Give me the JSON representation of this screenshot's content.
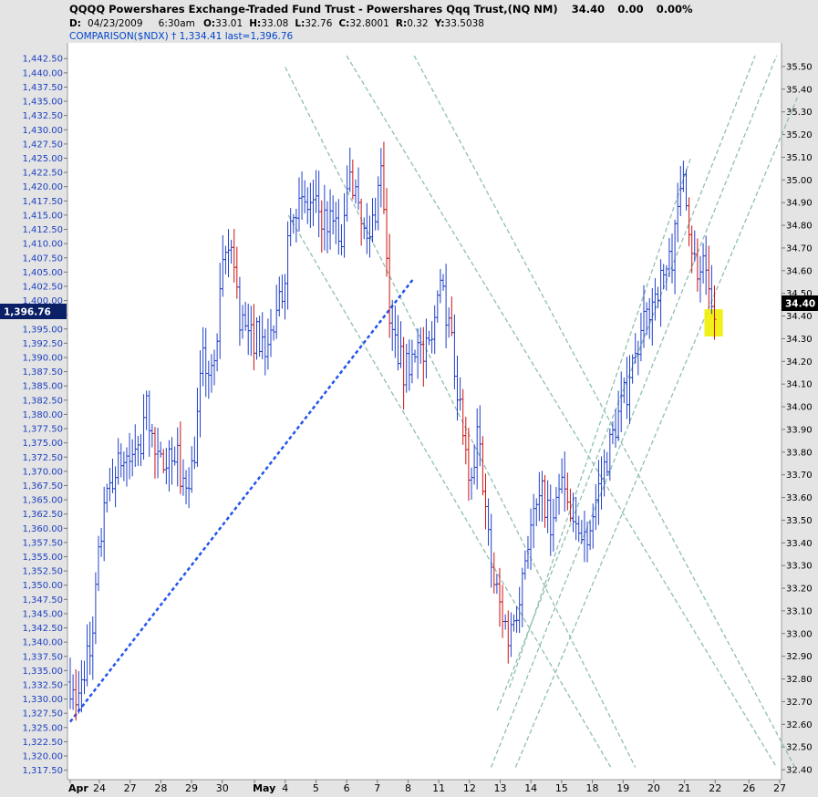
{
  "header": {
    "title": "QQQQ Powershares Exchange-Traded Fund Trust - Powershares Qqq Trust,(NQ NM)",
    "last": "34.40",
    "change": "0.00",
    "change_pct": "0.00%",
    "date_label": "D:",
    "date": "04/23/2009",
    "time": "6:30am",
    "open_label": "O:",
    "open": "33.01",
    "high_label": "H:",
    "high": "33.08",
    "low_label": "L:",
    "low": "32.76",
    "close_label": "C:",
    "close": "32.8001",
    "range_label": "R:",
    "range": "0.32",
    "y_label": "Y:",
    "y": "33.5038",
    "comparison": "COMPARISON($NDX) † 1,334.41 last=1,396.76"
  },
  "left_badge": "1,396.76",
  "right_badge": "34.40",
  "colors": {
    "background": "#ffffff",
    "axis_panel": "#e4e4e4",
    "up_bar": "#1f3fc8",
    "down_bar": "#cc1111",
    "trend_line": "#2255ee",
    "channel_line": "#8fbfb0",
    "left_badge_bg": "#0a1f66",
    "right_badge_bg": "#000000",
    "highlight": "#f0f000"
  },
  "chart_data": {
    "type": "ohlc",
    "x_tick_labels": [
      "Apr",
      "24",
      "27",
      "28",
      "29",
      "30",
      "May",
      "4",
      "5",
      "6",
      "7",
      "8",
      "11",
      "12",
      "13",
      "14",
      "15",
      "18",
      "19",
      "20",
      "21",
      "22",
      "26",
      "27"
    ],
    "left_axis": {
      "series": "$NDX (comparison)",
      "ylim": [
        1316.0,
        1443.5
      ],
      "ticks": [
        "1,442.50",
        "1,440.00",
        "1,437.50",
        "1,435.00",
        "1,432.50",
        "1,430.00",
        "1,427.50",
        "1,425.00",
        "1,422.50",
        "1,420.00",
        "1,417.50",
        "1,415.00",
        "1,412.50",
        "1,410.00",
        "1,407.50",
        "1,405.00",
        "1,402.50",
        "1,400.00",
        "1,397.50",
        "1,395.00",
        "1,392.50",
        "1,390.00",
        "1,387.50",
        "1,385.00",
        "1,382.50",
        "1,380.00",
        "1,377.50",
        "1,375.00",
        "1,372.50",
        "1,370.00",
        "1,367.50",
        "1,365.00",
        "1,362.50",
        "1,360.00",
        "1,357.50",
        "1,355.00",
        "1,352.50",
        "1,350.00",
        "1,347.50",
        "1,345.00",
        "1,342.50",
        "1,340.00",
        "1,337.50",
        "1,335.00",
        "1,332.50",
        "1,330.00",
        "1,327.50",
        "1,325.00",
        "1,322.50",
        "1,320.00",
        "1,317.50"
      ]
    },
    "right_axis": {
      "series": "QQQQ",
      "ylim": [
        32.36,
        35.56
      ],
      "ticks": [
        "35.50",
        "35.40",
        "35.30",
        "35.20",
        "35.10",
        "35.00",
        "34.90",
        "34.80",
        "34.70",
        "34.60",
        "34.50",
        "34.40",
        "34.30",
        "34.20",
        "34.10",
        "34.00",
        "33.90",
        "33.80",
        "33.70",
        "33.60",
        "33.50",
        "33.40",
        "33.30",
        "33.20",
        "33.10",
        "33.00",
        "32.90",
        "32.80",
        "32.70",
        "32.60",
        "32.50",
        "32.40"
      ]
    },
    "x_index_range": [
      0,
      23.1
    ],
    "price_path": [
      {
        "x": 0.0,
        "y": 1333.0
      },
      {
        "x": 0.2,
        "y": 1327.0
      },
      {
        "x": 0.4,
        "y": 1335.5
      },
      {
        "x": 0.7,
        "y": 1338.0
      },
      {
        "x": 0.95,
        "y": 1357.0
      },
      {
        "x": 1.3,
        "y": 1368.0
      },
      {
        "x": 1.7,
        "y": 1372.0
      },
      {
        "x": 2.0,
        "y": 1372.0
      },
      {
        "x": 2.3,
        "y": 1374.0
      },
      {
        "x": 2.5,
        "y": 1382.0
      },
      {
        "x": 2.8,
        "y": 1371.0
      },
      {
        "x": 3.1,
        "y": 1372.0
      },
      {
        "x": 3.4,
        "y": 1374.0
      },
      {
        "x": 3.7,
        "y": 1368.0
      },
      {
        "x": 4.0,
        "y": 1371.0
      },
      {
        "x": 4.3,
        "y": 1389.0
      },
      {
        "x": 4.7,
        "y": 1388.0
      },
      {
        "x": 5.0,
        "y": 1407.0
      },
      {
        "x": 5.3,
        "y": 1410.0
      },
      {
        "x": 5.5,
        "y": 1398.0
      },
      {
        "x": 5.8,
        "y": 1393.0
      },
      {
        "x": 6.1,
        "y": 1394.0
      },
      {
        "x": 6.4,
        "y": 1392.0
      },
      {
        "x": 6.7,
        "y": 1396.0
      },
      {
        "x": 6.95,
        "y": 1403.0
      },
      {
        "x": 7.2,
        "y": 1418.0
      },
      {
        "x": 7.5,
        "y": 1416.0
      },
      {
        "x": 7.9,
        "y": 1417.0
      },
      {
        "x": 8.2,
        "y": 1415.0
      },
      {
        "x": 8.5,
        "y": 1413.0
      },
      {
        "x": 8.9,
        "y": 1411.0
      },
      {
        "x": 9.1,
        "y": 1424.0
      },
      {
        "x": 9.4,
        "y": 1414.0
      },
      {
        "x": 9.7,
        "y": 1409.0
      },
      {
        "x": 9.95,
        "y": 1417.0
      },
      {
        "x": 10.15,
        "y": 1424.0
      },
      {
        "x": 10.4,
        "y": 1398.0
      },
      {
        "x": 10.6,
        "y": 1392.0
      },
      {
        "x": 10.9,
        "y": 1387.0
      },
      {
        "x": 11.2,
        "y": 1393.0
      },
      {
        "x": 11.5,
        "y": 1390.0
      },
      {
        "x": 11.8,
        "y": 1392.0
      },
      {
        "x": 12.0,
        "y": 1406.0
      },
      {
        "x": 12.2,
        "y": 1400.0
      },
      {
        "x": 12.5,
        "y": 1389.0
      },
      {
        "x": 12.8,
        "y": 1376.0
      },
      {
        "x": 13.0,
        "y": 1365.0
      },
      {
        "x": 13.3,
        "y": 1378.0
      },
      {
        "x": 13.5,
        "y": 1363.0
      },
      {
        "x": 13.75,
        "y": 1352.0
      },
      {
        "x": 14.0,
        "y": 1346.0
      },
      {
        "x": 14.3,
        "y": 1341.0
      },
      {
        "x": 14.6,
        "y": 1348.0
      },
      {
        "x": 14.85,
        "y": 1357.0
      },
      {
        "x": 15.1,
        "y": 1362.0
      },
      {
        "x": 15.4,
        "y": 1366.0
      },
      {
        "x": 15.7,
        "y": 1359.0
      },
      {
        "x": 16.0,
        "y": 1368.0
      },
      {
        "x": 16.3,
        "y": 1361.0
      },
      {
        "x": 16.6,
        "y": 1358.0
      },
      {
        "x": 16.9,
        "y": 1360.0
      },
      {
        "x": 17.2,
        "y": 1367.0
      },
      {
        "x": 17.5,
        "y": 1373.0
      },
      {
        "x": 17.8,
        "y": 1379.0
      },
      {
        "x": 18.1,
        "y": 1384.0
      },
      {
        "x": 18.4,
        "y": 1390.0
      },
      {
        "x": 18.7,
        "y": 1396.0
      },
      {
        "x": 19.0,
        "y": 1401.0
      },
      {
        "x": 19.3,
        "y": 1404.0
      },
      {
        "x": 19.6,
        "y": 1408.0
      },
      {
        "x": 19.85,
        "y": 1418.0
      },
      {
        "x": 20.0,
        "y": 1422.0
      },
      {
        "x": 20.2,
        "y": 1411.0
      },
      {
        "x": 20.4,
        "y": 1405.0
      },
      {
        "x": 20.6,
        "y": 1406.0
      },
      {
        "x": 20.8,
        "y": 1399.0
      },
      {
        "x": 21.0,
        "y": 1396.8
      }
    ],
    "trend_line": [
      {
        "x": 0.0,
        "y": 1326.0
      },
      {
        "x": 11.2,
        "y": 1404.0
      }
    ],
    "channel_lines": [
      [
        {
          "x": 7.0,
          "y": 1441.0
        },
        {
          "x": 18.4,
          "y": 1318.0
        }
      ],
      [
        {
          "x": 7.1,
          "y": 1415.0
        },
        {
          "x": 17.6,
          "y": 1318.0
        }
      ],
      [
        {
          "x": 9.0,
          "y": 1443.0
        },
        {
          "x": 23.0,
          "y": 1318.0
        }
      ],
      [
        {
          "x": 11.2,
          "y": 1443.0
        },
        {
          "x": 23.6,
          "y": 1318.0
        }
      ],
      [
        {
          "x": 13.9,
          "y": 1328.0
        },
        {
          "x": 22.3,
          "y": 1443.0
        }
      ],
      [
        {
          "x": 13.7,
          "y": 1318.0
        },
        {
          "x": 23.0,
          "y": 1443.0
        }
      ],
      [
        {
          "x": 14.5,
          "y": 1318.0
        },
        {
          "x": 23.7,
          "y": 1436.0
        }
      ],
      [
        {
          "x": 14.3,
          "y": 1332.0
        },
        {
          "x": 20.2,
          "y": 1425.0
        }
      ]
    ],
    "highlight_box": {
      "x": [
        20.65,
        21.25
      ],
      "y": [
        34.31,
        34.43
      ],
      "axis": "right"
    }
  }
}
